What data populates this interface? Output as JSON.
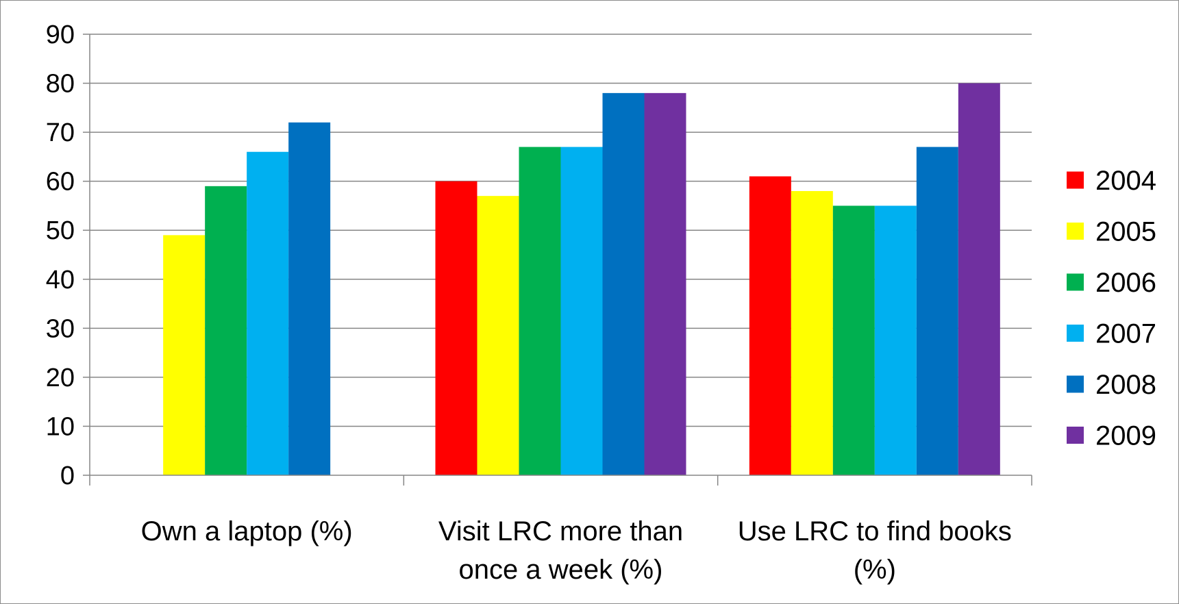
{
  "chart_data": {
    "type": "bar",
    "title": "",
    "xlabel": "",
    "ylabel": "",
    "ylim": [
      0,
      90
    ],
    "yticks": [
      "0",
      "10",
      "20",
      "30",
      "40",
      "50",
      "60",
      "70",
      "80",
      "90"
    ],
    "grid": true,
    "legend_position": "right",
    "categories": [
      [
        "Own a laptop (%)"
      ],
      [
        "Visit LRC more than",
        "once a week (%)"
      ],
      [
        "Use LRC to find books",
        "(%)"
      ]
    ],
    "series": [
      {
        "name": "2004",
        "color": "#ff0000",
        "values": [
          null,
          60,
          61
        ]
      },
      {
        "name": "2005",
        "color": "#ffff00",
        "values": [
          49,
          57,
          58
        ]
      },
      {
        "name": "2006",
        "color": "#00b050",
        "values": [
          59,
          67,
          55
        ]
      },
      {
        "name": "2007",
        "color": "#00b0f0",
        "values": [
          66,
          67,
          55
        ]
      },
      {
        "name": "2008",
        "color": "#0070c0",
        "values": [
          72,
          78,
          67
        ]
      },
      {
        "name": "2009",
        "color": "#7030a0",
        "values": [
          null,
          78,
          80
        ]
      }
    ]
  }
}
